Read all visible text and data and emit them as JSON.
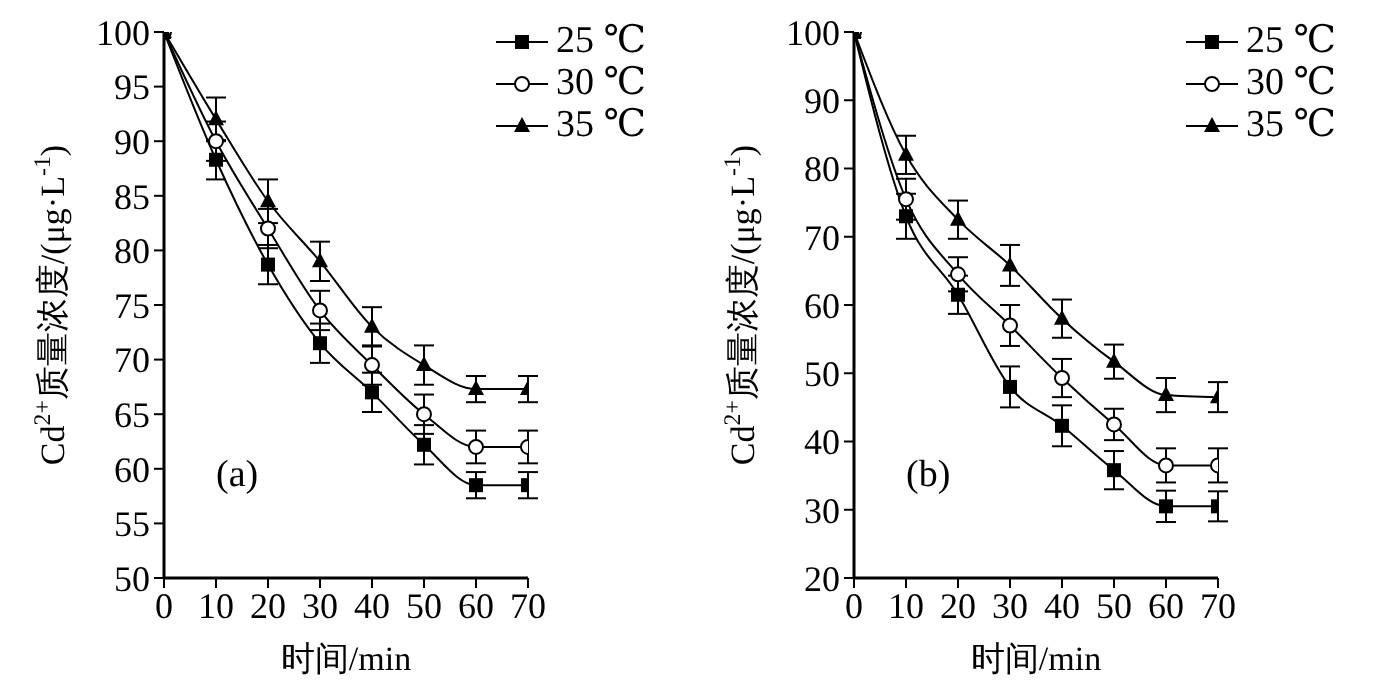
{
  "chart_data": [
    {
      "type": "line",
      "xlabel": "时间/min",
      "ylabel": "Cd$^{2+}$质量浓度/(μg·L$^{-1}$)",
      "annotations": [
        "(a)"
      ],
      "x": [
        0,
        10,
        20,
        30,
        40,
        50,
        60,
        70
      ],
      "xlim": [
        0,
        70
      ],
      "xticks": [
        0,
        10,
        20,
        30,
        40,
        50,
        60,
        70
      ],
      "ylim": [
        50,
        100
      ],
      "yticks": [
        50,
        55,
        60,
        65,
        70,
        75,
        80,
        85,
        90,
        95,
        100
      ],
      "grid": false,
      "legend": "top right",
      "line_style": "solid",
      "series": [
        {
          "name": "25 ℃",
          "color": "#000000",
          "marker": "square",
          "values": [
            100,
            88.3,
            78.7,
            71.5,
            67,
            62.2,
            58.5,
            58.5
          ],
          "errors": [
            null,
            1.8,
            1.8,
            1.8,
            1.8,
            1.8,
            1.2,
            1.2
          ]
        },
        {
          "name": "30 ℃",
          "color": "#000000",
          "marker": "circle",
          "values": [
            100,
            90,
            82,
            74.5,
            69.5,
            65,
            62,
            62
          ],
          "errors": [
            null,
            1.8,
            1.8,
            1.8,
            1.8,
            1.8,
            1.5,
            1.5
          ]
        },
        {
          "name": "35 ℃",
          "color": "#000000",
          "marker": "triangle",
          "values": [
            100,
            92,
            84.5,
            79,
            73,
            69.5,
            67.3,
            67.3
          ],
          "errors": [
            null,
            2,
            2,
            1.8,
            1.8,
            1.8,
            1.2,
            1.2
          ]
        }
      ]
    },
    {
      "type": "line",
      "xlabel": "时间/min",
      "ylabel": "Cd$^{2+}$质量浓度/(μg·L$^{-1}$)",
      "annotations": [
        "(b)"
      ],
      "x": [
        0,
        10,
        20,
        30,
        40,
        50,
        60,
        70
      ],
      "xlim": [
        0,
        70
      ],
      "xticks": [
        0,
        10,
        20,
        30,
        40,
        50,
        60,
        70
      ],
      "ylim": [
        20,
        100
      ],
      "yticks": [
        20,
        30,
        40,
        50,
        60,
        70,
        80,
        90,
        100
      ],
      "grid": false,
      "legend": "top right",
      "line_style": "solid",
      "series": [
        {
          "name": "25 ℃",
          "color": "#000000",
          "marker": "square",
          "values": [
            100,
            73,
            61.5,
            48,
            42.3,
            35.8,
            30.5,
            30.5
          ],
          "errors": [
            null,
            3.3,
            2.8,
            3,
            3,
            2.8,
            2.3,
            2.2
          ]
        },
        {
          "name": "30 ℃",
          "color": "#000000",
          "marker": "circle",
          "values": [
            100,
            75.5,
            64.5,
            57,
            49.3,
            42.5,
            36.5,
            36.5
          ],
          "errors": [
            null,
            3,
            2.5,
            3,
            2.8,
            2.3,
            2.5,
            2.5
          ]
        },
        {
          "name": "35 ℃",
          "color": "#000000",
          "marker": "triangle",
          "values": [
            100,
            82,
            72.5,
            65.8,
            58,
            51.7,
            46.8,
            46.5
          ],
          "errors": [
            null,
            2.8,
            2.8,
            3,
            2.8,
            2.5,
            2.5,
            2.2
          ]
        }
      ]
    }
  ]
}
